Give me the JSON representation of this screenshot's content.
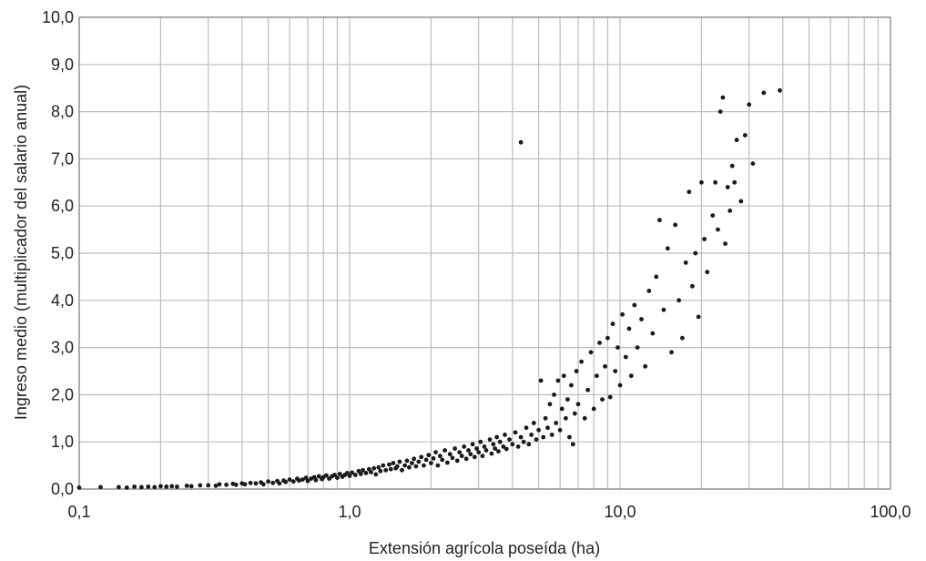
{
  "chart_data": {
    "type": "scatter",
    "title": "",
    "xlabel": "Extensión agrícola poseída (ha)",
    "ylabel": "Ingreso medio (multiplicador del salario anual)",
    "x_scale": "log",
    "xlim": [
      0.1,
      100.0
    ],
    "ylim": [
      0.0,
      10.0
    ],
    "x_ticks": [
      "0,1",
      "1,0",
      "10,0",
      "100,0"
    ],
    "y_ticks": [
      "0,0",
      "1,0",
      "2,0",
      "3,0",
      "4,0",
      "5,0",
      "6,0",
      "7,0",
      "8,0",
      "9,0",
      "10,0"
    ],
    "grid": true,
    "marker_color": "#1a1a1a",
    "points": [
      [
        0.1,
        0.03
      ],
      [
        0.12,
        0.04
      ],
      [
        0.14,
        0.04
      ],
      [
        0.15,
        0.03
      ],
      [
        0.16,
        0.05
      ],
      [
        0.17,
        0.04
      ],
      [
        0.18,
        0.05
      ],
      [
        0.19,
        0.04
      ],
      [
        0.2,
        0.06
      ],
      [
        0.21,
        0.05
      ],
      [
        0.22,
        0.06
      ],
      [
        0.23,
        0.05
      ],
      [
        0.25,
        0.07
      ],
      [
        0.26,
        0.06
      ],
      [
        0.28,
        0.08
      ],
      [
        0.3,
        0.08
      ],
      [
        0.32,
        0.07
      ],
      [
        0.33,
        0.1
      ],
      [
        0.35,
        0.09
      ],
      [
        0.37,
        0.11
      ],
      [
        0.38,
        0.09
      ],
      [
        0.4,
        0.12
      ],
      [
        0.41,
        0.1
      ],
      [
        0.43,
        0.13
      ],
      [
        0.45,
        0.12
      ],
      [
        0.47,
        0.14
      ],
      [
        0.48,
        0.1
      ],
      [
        0.5,
        0.16
      ],
      [
        0.52,
        0.13
      ],
      [
        0.54,
        0.17
      ],
      [
        0.55,
        0.12
      ],
      [
        0.57,
        0.18
      ],
      [
        0.58,
        0.15
      ],
      [
        0.6,
        0.2
      ],
      [
        0.62,
        0.16
      ],
      [
        0.64,
        0.22
      ],
      [
        0.65,
        0.18
      ],
      [
        0.67,
        0.2
      ],
      [
        0.69,
        0.24
      ],
      [
        0.7,
        0.17
      ],
      [
        0.72,
        0.22
      ],
      [
        0.74,
        0.25
      ],
      [
        0.75,
        0.19
      ],
      [
        0.77,
        0.27
      ],
      [
        0.79,
        0.21
      ],
      [
        0.8,
        0.25
      ],
      [
        0.82,
        0.29
      ],
      [
        0.84,
        0.22
      ],
      [
        0.86,
        0.27
      ],
      [
        0.88,
        0.3
      ],
      [
        0.9,
        0.24
      ],
      [
        0.92,
        0.32
      ],
      [
        0.94,
        0.26
      ],
      [
        0.96,
        0.3
      ],
      [
        0.98,
        0.34
      ],
      [
        1.0,
        0.28
      ],
      [
        1.02,
        0.35
      ],
      [
        1.05,
        0.3
      ],
      [
        1.08,
        0.38
      ],
      [
        1.1,
        0.32
      ],
      [
        1.12,
        0.4
      ],
      [
        1.15,
        0.34
      ],
      [
        1.18,
        0.42
      ],
      [
        1.2,
        0.36
      ],
      [
        1.23,
        0.44
      ],
      [
        1.25,
        0.31
      ],
      [
        1.28,
        0.46
      ],
      [
        1.3,
        0.38
      ],
      [
        1.33,
        0.5
      ],
      [
        1.36,
        0.4
      ],
      [
        1.4,
        0.52
      ],
      [
        1.42,
        0.42
      ],
      [
        1.45,
        0.55
      ],
      [
        1.48,
        0.44
      ],
      [
        1.5,
        0.48
      ],
      [
        1.53,
        0.58
      ],
      [
        1.56,
        0.4
      ],
      [
        1.6,
        0.5
      ],
      [
        1.63,
        0.6
      ],
      [
        1.66,
        0.46
      ],
      [
        1.7,
        0.55
      ],
      [
        1.73,
        0.64
      ],
      [
        1.76,
        0.48
      ],
      [
        1.8,
        0.58
      ],
      [
        1.84,
        0.68
      ],
      [
        1.88,
        0.5
      ],
      [
        1.92,
        0.62
      ],
      [
        1.96,
        0.72
      ],
      [
        2.0,
        0.55
      ],
      [
        2.04,
        0.65
      ],
      [
        2.08,
        0.78
      ],
      [
        2.12,
        0.5
      ],
      [
        2.16,
        0.7
      ],
      [
        2.2,
        0.62
      ],
      [
        2.25,
        0.82
      ],
      [
        2.3,
        0.56
      ],
      [
        2.35,
        0.74
      ],
      [
        2.4,
        0.66
      ],
      [
        2.45,
        0.86
      ],
      [
        2.5,
        0.6
      ],
      [
        2.55,
        0.78
      ],
      [
        2.6,
        0.7
      ],
      [
        2.65,
        0.9
      ],
      [
        2.7,
        0.64
      ],
      [
        2.75,
        0.82
      ],
      [
        2.8,
        0.74
      ],
      [
        2.85,
        0.95
      ],
      [
        2.9,
        0.68
      ],
      [
        2.95,
        0.86
      ],
      [
        3.0,
        0.78
      ],
      [
        3.05,
        1.0
      ],
      [
        3.1,
        0.7
      ],
      [
        3.15,
        0.9
      ],
      [
        3.2,
        0.82
      ],
      [
        3.3,
        1.05
      ],
      [
        3.35,
        0.75
      ],
      [
        3.4,
        0.95
      ],
      [
        3.45,
        0.86
      ],
      [
        3.5,
        1.1
      ],
      [
        3.55,
        0.8
      ],
      [
        3.6,
        1.0
      ],
      [
        3.7,
        0.9
      ],
      [
        3.75,
        1.15
      ],
      [
        3.8,
        0.85
      ],
      [
        3.9,
        1.05
      ],
      [
        4.0,
        0.95
      ],
      [
        4.1,
        1.2
      ],
      [
        4.2,
        0.9
      ],
      [
        4.3,
        7.35
      ],
      [
        4.3,
        1.1
      ],
      [
        4.4,
        1.0
      ],
      [
        4.5,
        1.3
      ],
      [
        4.6,
        0.95
      ],
      [
        4.7,
        1.15
      ],
      [
        4.8,
        1.4
      ],
      [
        4.9,
        1.05
      ],
      [
        5.0,
        1.25
      ],
      [
        5.1,
        2.3
      ],
      [
        5.2,
        1.1
      ],
      [
        5.3,
        1.5
      ],
      [
        5.4,
        1.3
      ],
      [
        5.5,
        1.8
      ],
      [
        5.6,
        1.15
      ],
      [
        5.7,
        2.0
      ],
      [
        5.8,
        1.4
      ],
      [
        5.9,
        2.3
      ],
      [
        6.0,
        1.25
      ],
      [
        6.1,
        1.7
      ],
      [
        6.2,
        2.4
      ],
      [
        6.3,
        1.5
      ],
      [
        6.4,
        1.9
      ],
      [
        6.5,
        1.1
      ],
      [
        6.6,
        2.2
      ],
      [
        6.7,
        0.95
      ],
      [
        6.8,
        1.6
      ],
      [
        6.9,
        2.5
      ],
      [
        7.0,
        1.8
      ],
      [
        7.2,
        2.7
      ],
      [
        7.4,
        1.5
      ],
      [
        7.6,
        2.1
      ],
      [
        7.8,
        2.9
      ],
      [
        8.0,
        1.7
      ],
      [
        8.2,
        2.4
      ],
      [
        8.4,
        3.1
      ],
      [
        8.6,
        1.9
      ],
      [
        8.8,
        2.6
      ],
      [
        9.0,
        3.2
      ],
      [
        9.2,
        1.95
      ],
      [
        9.4,
        3.5
      ],
      [
        9.6,
        2.5
      ],
      [
        9.8,
        3.0
      ],
      [
        10.0,
        2.2
      ],
      [
        10.2,
        3.7
      ],
      [
        10.5,
        2.8
      ],
      [
        10.8,
        3.4
      ],
      [
        11.0,
        2.4
      ],
      [
        11.3,
        3.9
      ],
      [
        11.6,
        3.0
      ],
      [
        12.0,
        3.6
      ],
      [
        12.4,
        2.6
      ],
      [
        12.8,
        4.2
      ],
      [
        13.2,
        3.3
      ],
      [
        13.6,
        4.5
      ],
      [
        14.0,
        5.7
      ],
      [
        14.5,
        3.8
      ],
      [
        15.0,
        5.1
      ],
      [
        15.5,
        2.9
      ],
      [
        16.0,
        5.6
      ],
      [
        16.5,
        4.0
      ],
      [
        17.0,
        3.2
      ],
      [
        17.5,
        4.8
      ],
      [
        18.0,
        6.3
      ],
      [
        18.5,
        4.3
      ],
      [
        19.0,
        5.0
      ],
      [
        19.5,
        3.65
      ],
      [
        20.0,
        6.5
      ],
      [
        20.5,
        5.3
      ],
      [
        21.0,
        4.6
      ],
      [
        22.0,
        5.8
      ],
      [
        22.5,
        6.5
      ],
      [
        23.0,
        5.5
      ],
      [
        23.5,
        8.0
      ],
      [
        24.0,
        8.3
      ],
      [
        24.5,
        5.2
      ],
      [
        25.0,
        6.4
      ],
      [
        25.5,
        5.9
      ],
      [
        26.0,
        6.85
      ],
      [
        26.5,
        6.5
      ],
      [
        27.0,
        7.4
      ],
      [
        28.0,
        6.1
      ],
      [
        29.0,
        7.5
      ],
      [
        30.0,
        8.15
      ],
      [
        31.0,
        6.9
      ],
      [
        34.0,
        8.4
      ],
      [
        39.0,
        8.45
      ]
    ]
  }
}
